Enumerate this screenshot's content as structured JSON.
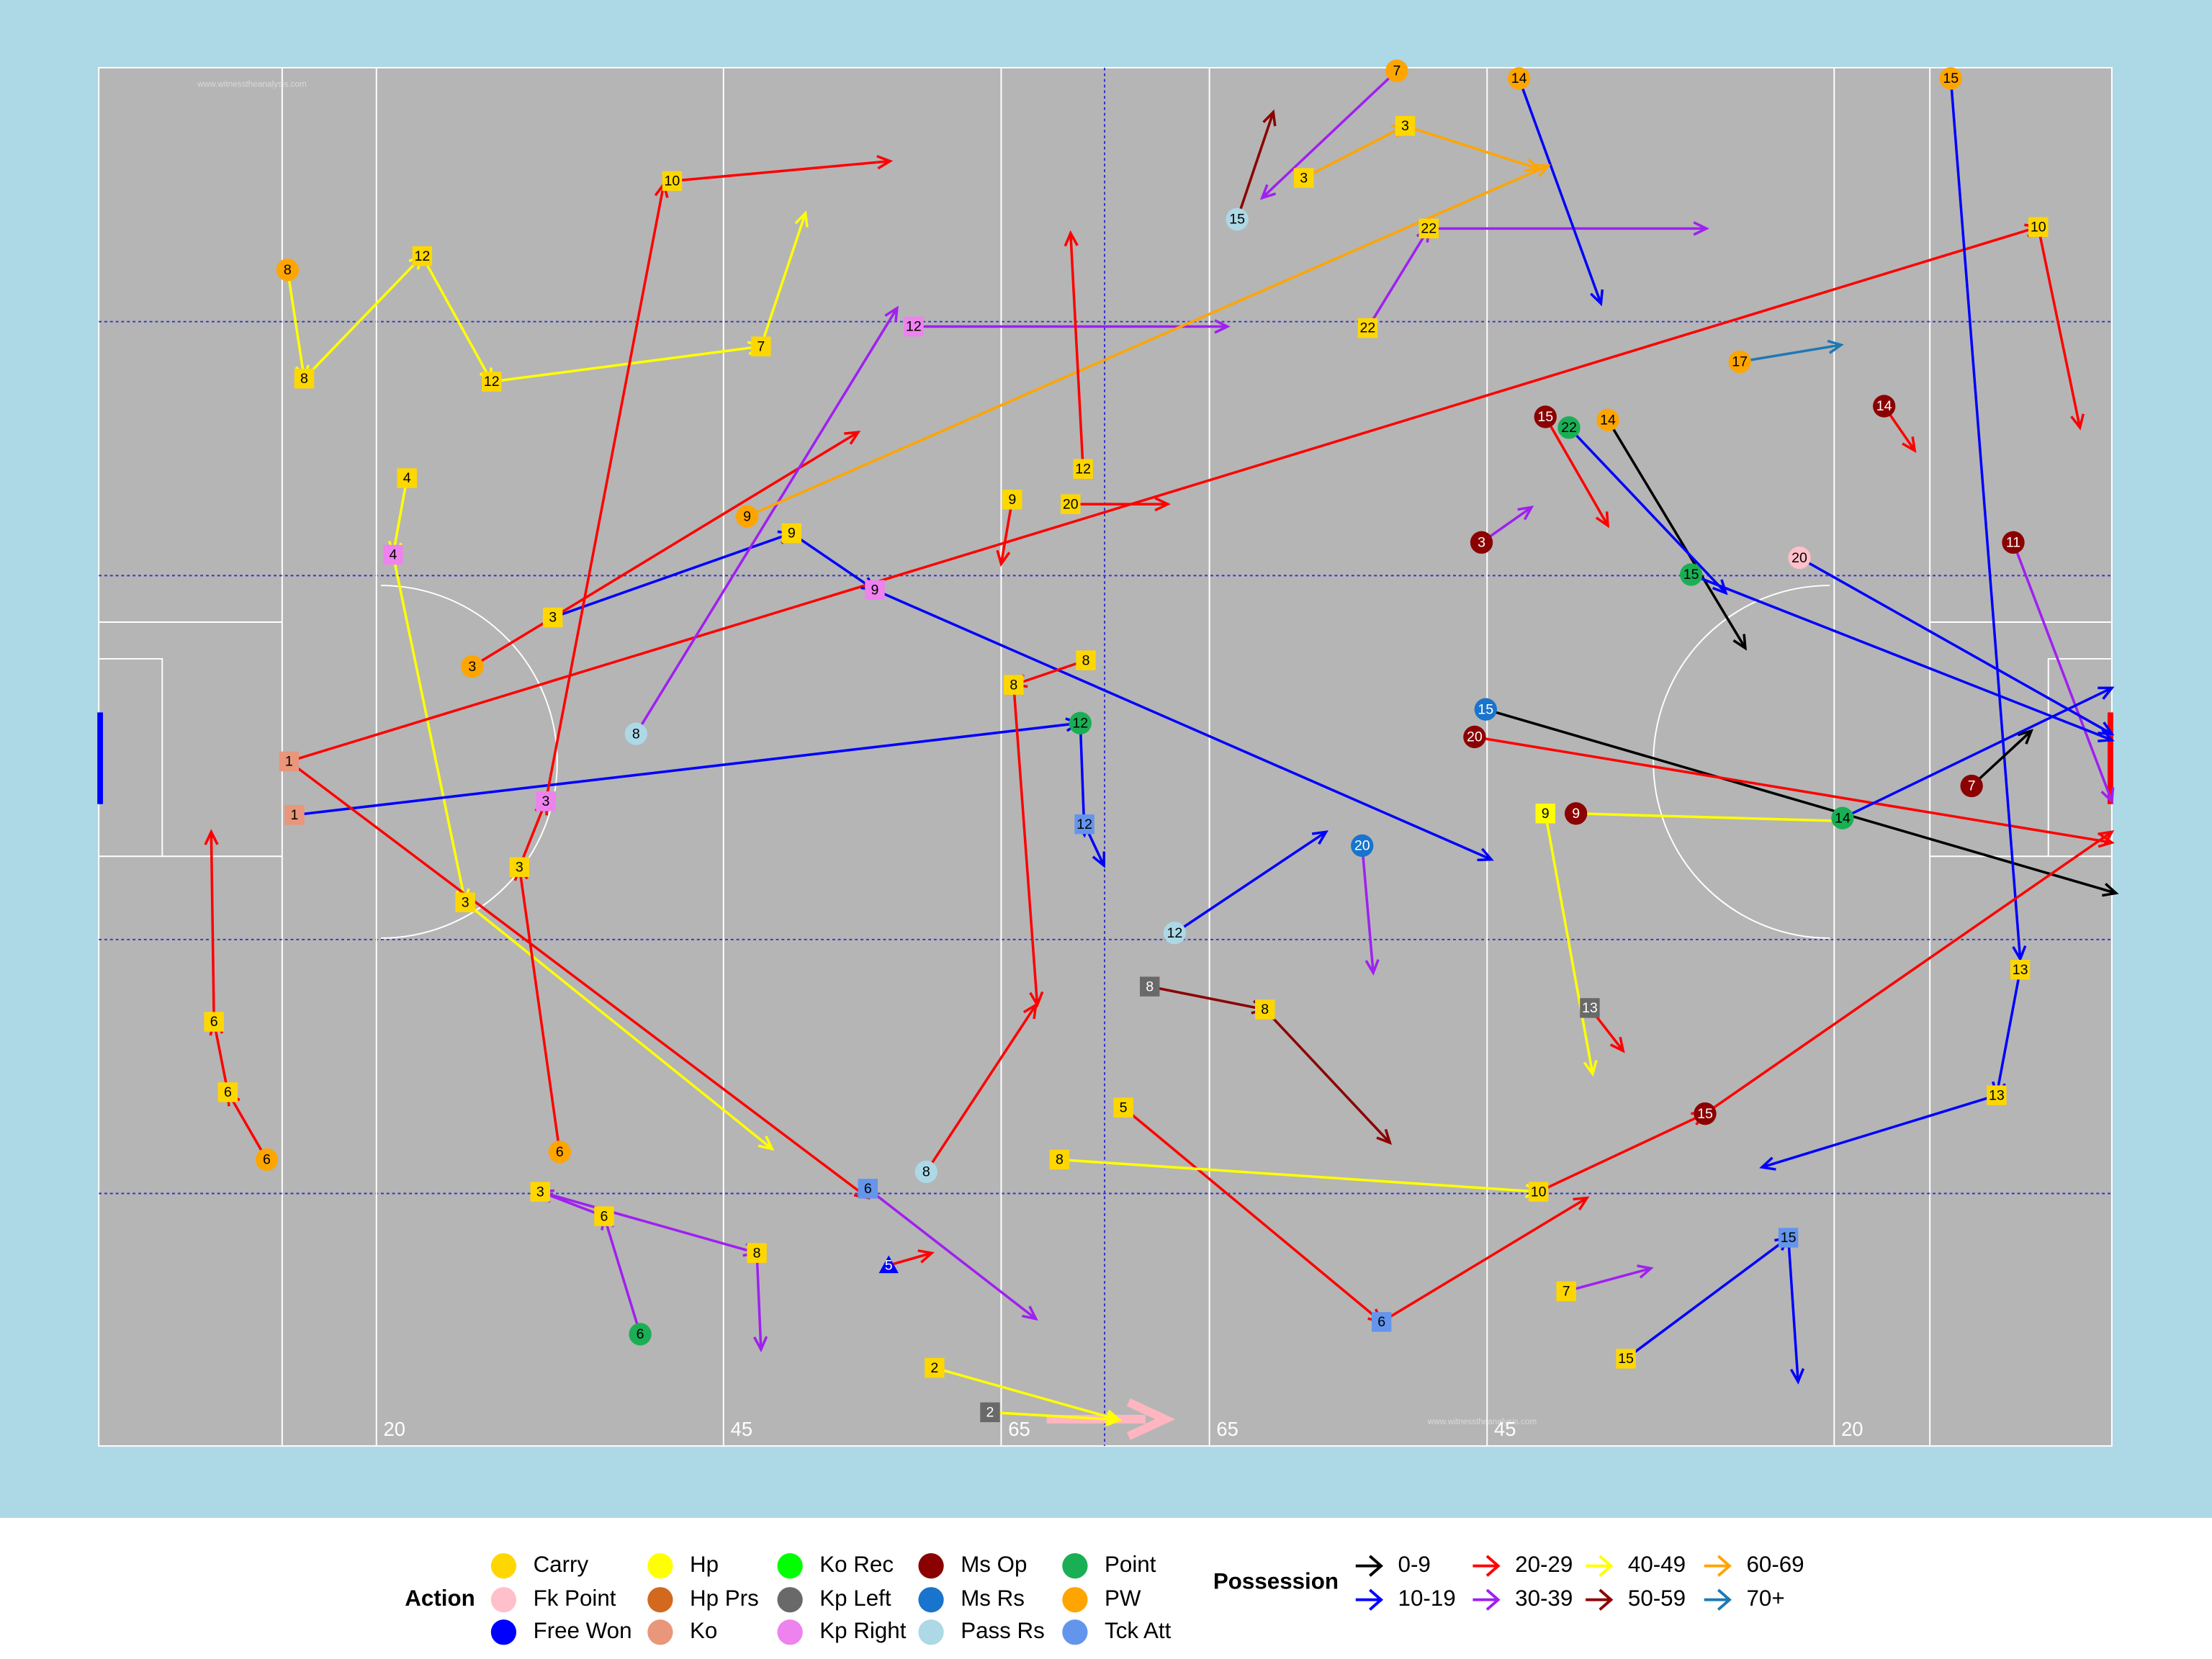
{
  "chart_data": {
    "type": "pitch-map",
    "watermark": "www.witnesstheanalysis.com",
    "xlim": [
      0,
      145
    ],
    "ylim": [
      0,
      90
    ],
    "xticks": [
      20,
      {
        "value": 45,
        "label": "45"
      },
      {
        "value": 65,
        "label": "65"
      },
      {
        "value": 80,
        "label": "65"
      },
      {
        "value": 100,
        "label": "45"
      },
      {
        "value": 125,
        "label": "20"
      }
    ],
    "legend": {
      "action_title": "Action",
      "possession_title": "Possession",
      "actions": [
        {
          "name": "Carry",
          "color": "#FFD700",
          "marker": "square"
        },
        {
          "name": "Fk Point",
          "color": "#FFC0CB",
          "marker": "circle"
        },
        {
          "name": "Free Won",
          "color": "#0000FF",
          "marker": "triangle"
        },
        {
          "name": "Hp",
          "color": "#FFFF00",
          "marker": "square"
        },
        {
          "name": "Hp Prs",
          "color": "#D2691E",
          "marker": "square"
        },
        {
          "name": "Ko",
          "color": "#E9967A",
          "marker": "square"
        },
        {
          "name": "Ko Rec",
          "color": "#00FF00",
          "marker": "circle"
        },
        {
          "name": "Kp Left",
          "color": "#696969",
          "marker": "square"
        },
        {
          "name": "Kp Right",
          "color": "#EE82EE",
          "marker": "square"
        },
        {
          "name": "Ms Op",
          "color": "#8B0000",
          "marker": "circle"
        },
        {
          "name": "Ms Rs",
          "color": "#1874CD",
          "marker": "circle"
        },
        {
          "name": "Pass Rs",
          "color": "#ADD8E6",
          "marker": "circle"
        },
        {
          "name": "Point",
          "color": "#1AAF54",
          "marker": "circle"
        },
        {
          "name": "PW",
          "color": "#FFA500",
          "marker": "circle"
        },
        {
          "name": "Tck Att",
          "color": "#6495ED",
          "marker": "square"
        }
      ],
      "possession": [
        {
          "name": "0-9",
          "color": "#000000"
        },
        {
          "name": "10-19",
          "color": "#0000FF"
        },
        {
          "name": "20-29",
          "color": "#FF0000"
        },
        {
          "name": "30-39",
          "color": "#A020F0"
        },
        {
          "name": "40-49",
          "color": "#FFFF00"
        },
        {
          "name": "50-59",
          "color": "#8B0000"
        },
        {
          "name": "60-69",
          "color": "#FFA500"
        },
        {
          "name": "70+",
          "color": "#1F78B4"
        }
      ]
    },
    "events": [
      {
        "label": "8",
        "action": "PW",
        "possession": "40-49",
        "x": 13.6,
        "y": 13.2,
        "x2": 14.8,
        "y2": 20.3
      },
      {
        "label": "8",
        "action": "Carry",
        "possession": "40-49",
        "x": 14.8,
        "y": 20.3,
        "x2": 23.3,
        "y2": 12.3
      },
      {
        "label": "12",
        "action": "Carry",
        "possession": "40-49",
        "x": 23.3,
        "y": 12.3,
        "x2": 28.3,
        "y2": 20.5
      },
      {
        "label": "12",
        "action": "Carry",
        "possession": "40-49",
        "x": 28.3,
        "y": 20.5,
        "x2": 47.7,
        "y2": 18.2
      },
      {
        "label": "7",
        "action": "Carry",
        "possession": "40-49",
        "x": 47.7,
        "y": 18.2,
        "x2": 50.9,
        "y2": 9.5
      },
      {
        "label": "4",
        "action": "Carry",
        "possession": "40-49",
        "x": 22.2,
        "y": 26.8,
        "x2": 21.2,
        "y2": 31.8
      },
      {
        "label": "4",
        "action": "Kp Right",
        "possession": "40-49",
        "x": 21.2,
        "y": 31.8,
        "x2": 26.4,
        "y2": 54.5
      },
      {
        "label": "3",
        "action": "Carry",
        "possession": "40-49",
        "x": 26.4,
        "y": 54.5,
        "x2": 48.5,
        "y2": 70.6
      },
      {
        "label": "1",
        "action": "Ko",
        "possession": "20-29",
        "x": 13.7,
        "y": 45.3,
        "x2": 139.7,
        "y2": 10.4
      },
      {
        "label": "10",
        "action": "Carry",
        "possession": "20-29",
        "x": 139.7,
        "y": 10.4,
        "x2": 142.7,
        "y2": 23.5
      },
      {
        "label": "6",
        "action": "Carry",
        "possession": "20-29",
        "x": 8.3,
        "y": 62.3,
        "x2": 8.1,
        "y2": 49.9
      },
      {
        "label": "6",
        "action": "Carry",
        "possession": "20-29",
        "x": 9.3,
        "y": 66.9,
        "x2": 8.3,
        "y2": 62.3
      },
      {
        "label": "6",
        "action": "PW",
        "possession": "20-29",
        "x": 12.1,
        "y": 71.3,
        "x2": 9.3,
        "y2": 66.9
      },
      {
        "label": "1",
        "action": "Ko",
        "possession": "10-19",
        "x": 14.1,
        "y": 48.8,
        "x2": 70.6,
        "y2": 42.8
      },
      {
        "label": "12",
        "action": "Point",
        "possession": "10-19",
        "x": 70.7,
        "y": 42.8,
        "x2": 71.0,
        "y2": 50.1
      },
      {
        "label": "12",
        "action": "Tck Att",
        "possession": "10-19",
        "x": 71.0,
        "y": 49.4,
        "x2": 72.4,
        "y2": 52.1
      },
      {
        "label": "3",
        "action": "Carry",
        "possession": "10-19",
        "x": 32.7,
        "y": 35.9,
        "x2": 49.9,
        "y2": 30.4
      },
      {
        "label": "9",
        "action": "Carry",
        "possession": "10-19",
        "x": 49.9,
        "y": 30.4,
        "x2": 55.9,
        "y2": 34.1
      },
      {
        "label": "9",
        "action": "Kp Right",
        "possession": "10-19",
        "x": 55.9,
        "y": 34.1,
        "x2": 100.3,
        "y2": 51.7
      },
      {
        "label": "3",
        "action": "PW",
        "possession": "20-29",
        "x": 26.9,
        "y": 39.1,
        "x2": 54.7,
        "y2": 23.8
      },
      {
        "label": "10",
        "action": "Carry",
        "possession": "20-29",
        "x": 41.3,
        "y": 7.4,
        "x2": 57.0,
        "y2": 6.1
      },
      {
        "label": "3",
        "action": "Kp Right",
        "possession": "20-29",
        "x": 32.2,
        "y": 47.9,
        "x2": 40.7,
        "y2": 7.6
      },
      {
        "label": "3",
        "action": "Carry",
        "possession": "20-29",
        "x": 30.3,
        "y": 52.2,
        "x2": 32.2,
        "y2": 47.9
      },
      {
        "label": "6",
        "action": "PW",
        "possession": "20-29",
        "x": 33.2,
        "y": 70.8,
        "x2": 30.3,
        "y2": 52.2
      },
      {
        "label": "1",
        "action": "Ko",
        "possession": "20-29",
        "x": 13.7,
        "y": 45.3,
        "x2": 55.4,
        "y2": 73.8
      },
      {
        "label": "6",
        "action": "Tck Att",
        "possession": "30-39",
        "x": 55.4,
        "y": 73.2,
        "x2": 67.5,
        "y2": 81.7
      },
      {
        "label": "6",
        "action": "Point",
        "possession": "30-39",
        "x": 39.0,
        "y": 82.7,
        "x2": 36.4,
        "y2": 75.0
      },
      {
        "label": "6",
        "action": "Carry",
        "possession": "30-39",
        "x": 36.4,
        "y": 75.0,
        "x2": 31.8,
        "y2": 73.4
      },
      {
        "label": "3",
        "action": "Carry",
        "possession": "30-39",
        "x": 31.8,
        "y": 73.4,
        "x2": 47.4,
        "y2": 77.4
      },
      {
        "label": "8",
        "action": "Carry",
        "possession": "30-39",
        "x": 47.4,
        "y": 77.4,
        "x2": 47.7,
        "y2": 83.7
      },
      {
        "label": "8",
        "action": "Pass Rs",
        "possession": "30-39",
        "x": 38.7,
        "y": 43.5,
        "x2": 57.5,
        "y2": 15.7
      },
      {
        "label": "12",
        "action": "Kp Right",
        "possession": "30-39",
        "x": 58.7,
        "y": 16.9,
        "x2": 81.3,
        "y2": 16.9
      },
      {
        "label": "22",
        "action": "Carry",
        "possession": "30-39",
        "x": 91.4,
        "y": 17.0,
        "x2": 95.8,
        "y2": 10.5
      },
      {
        "label": "22",
        "action": "Carry",
        "possession": "30-39",
        "x": 95.8,
        "y": 10.5,
        "x2": 115.8,
        "y2": 10.5
      },
      {
        "label": "15",
        "action": "Ms Rs",
        "possession": "0-9",
        "x": 99.9,
        "y": 41.9,
        "x2": 145.3,
        "y2": 53.9
      },
      {
        "label": "20",
        "action": "Ms Op",
        "possession": "20-29",
        "x": 99.1,
        "y": 43.7,
        "x2": 145.0,
        "y2": 50.6
      },
      {
        "label": "14",
        "action": "PW",
        "possession": "0-9",
        "x": 108.7,
        "y": 23.0,
        "x2": 118.6,
        "y2": 37.9
      },
      {
        "label": "14",
        "action": "PW",
        "possession": "10-19",
        "x": 102.3,
        "y": 0.7,
        "x2": 108.2,
        "y2": 15.4
      },
      {
        "label": "15",
        "action": "PW",
        "possession": "10-19",
        "x": 133.4,
        "y": 0.7,
        "x2": 138.4,
        "y2": 58.2
      },
      {
        "label": "13",
        "action": "Carry",
        "possession": "10-19",
        "x": 138.4,
        "y": 58.9,
        "x2": 136.7,
        "y2": 67.1
      },
      {
        "label": "13",
        "action": "Carry",
        "possession": "10-19",
        "x": 136.7,
        "y": 67.1,
        "x2": 119.8,
        "y2": 71.8
      },
      {
        "label": "17",
        "action": "PW",
        "possession": "70+",
        "x": 118.2,
        "y": 19.2,
        "x2": 125.5,
        "y2": 18.1
      },
      {
        "label": "14",
        "action": "Ms Op",
        "possession": "20-29",
        "x": 128.6,
        "y": 22.1,
        "x2": 130.8,
        "y2": 25.0
      },
      {
        "label": "11",
        "action": "Ms Op",
        "possession": "30-39",
        "x": 137.9,
        "y": 31.0,
        "x2": 145.0,
        "y2": 47.9
      },
      {
        "label": "7",
        "action": "Ms Op",
        "possession": "0-9",
        "x": 134.9,
        "y": 46.9,
        "x2": 139.2,
        "y2": 43.3
      },
      {
        "label": "9",
        "action": "Ms Op",
        "possession": "40-49",
        "x": 106.4,
        "y": 48.7,
        "x2": 126.0,
        "y2": 49.2
      },
      {
        "label": "14",
        "action": "Point",
        "possession": "10-19",
        "x": 125.6,
        "y": 49.0,
        "x2": 145.0,
        "y2": 40.5
      },
      {
        "label": "15",
        "action": "Ms Op",
        "possession": "20-29",
        "x": 115.7,
        "y": 68.3,
        "x2": 145.0,
        "y2": 49.9
      },
      {
        "label": "5",
        "action": "Carry",
        "possession": "20-29",
        "x": 73.8,
        "y": 67.9,
        "x2": 92.4,
        "y2": 81.9
      },
      {
        "label": "6",
        "action": "Tck Att",
        "possession": "20-29",
        "x": 92.4,
        "y": 81.9,
        "x2": 107.2,
        "y2": 73.8
      },
      {
        "label": "3",
        "action": "Ms Op",
        "possession": "30-39",
        "x": 99.6,
        "y": 31.0,
        "x2": 103.2,
        "y2": 28.7
      },
      {
        "label": "20",
        "action": "Fk Point",
        "possession": "10-19",
        "x": 122.5,
        "y": 32.0,
        "x2": 145.0,
        "y2": 43.5
      },
      {
        "label": "7",
        "action": "PW",
        "possession": "30-39",
        "x": 93.5,
        "y": 0.2,
        "x2": 83.8,
        "y2": 8.5
      },
      {
        "label": "3",
        "action": "Carry",
        "possession": "60-69",
        "x": 94.1,
        "y": 3.8,
        "x2": 103.7,
        "y2": 6.6
      },
      {
        "label": "3",
        "action": "Carry",
        "possession": "60-69",
        "x": 86.8,
        "y": 7.2,
        "x2": 94.1,
        "y2": 3.8
      },
      {
        "label": "9",
        "action": "PW",
        "possession": "60-69",
        "x": 46.7,
        "y": 29.3,
        "x2": 104.4,
        "y2": 6.4
      },
      {
        "label": "9",
        "action": "Carry",
        "possession": "20-29",
        "x": 65.8,
        "y": 28.2,
        "x2": 65.0,
        "y2": 32.4
      },
      {
        "label": "20",
        "action": "Carry",
        "possession": "20-29",
        "x": 70.0,
        "y": 28.5,
        "x2": 77.0,
        "y2": 28.5
      },
      {
        "label": "12",
        "action": "Carry",
        "possession": "20-29",
        "x": 70.9,
        "y": 26.2,
        "x2": 70.0,
        "y2": 10.8
      },
      {
        "label": "8",
        "action": "Carry",
        "possession": "20-29",
        "x": 71.1,
        "y": 38.7,
        "x2": 65.9,
        "y2": 40.3
      },
      {
        "label": "8",
        "action": "Carry",
        "possession": "20-29",
        "x": 65.9,
        "y": 40.3,
        "x2": 67.6,
        "y2": 61.2
      },
      {
        "label": "8",
        "action": "Kp Left",
        "possession": "50-59",
        "x": 75.7,
        "y": 60.0,
        "x2": 84.0,
        "y2": 61.5
      },
      {
        "label": "8",
        "action": "Carry",
        "possession": "50-59",
        "x": 84.0,
        "y": 61.5,
        "x2": 93.0,
        "y2": 70.2
      },
      {
        "label": "2",
        "action": "Kp Left",
        "possession": "40-49",
        "x": 64.2,
        "y": 87.8,
        "x2": 73.5,
        "y2": 88.3
      },
      {
        "label": "2",
        "action": "Carry",
        "possession": "40-49",
        "x": 60.2,
        "y": 84.9,
        "x2": 73.5,
        "y2": 88.3
      },
      {
        "label": "8",
        "action": "Pass Rs",
        "possession": "20-29",
        "x": 59.6,
        "y": 72.1,
        "x2": 67.5,
        "y2": 61.2
      },
      {
        "label": "8",
        "action": "Carry",
        "possession": "40-49",
        "x": 69.2,
        "y": 71.3,
        "x2": 103.7,
        "y2": 73.4
      },
      {
        "label": "10",
        "action": "Carry",
        "possession": "20-29",
        "x": 103.7,
        "y": 73.4,
        "x2": 115.7,
        "y2": 68.3
      },
      {
        "label": "7",
        "action": "Carry",
        "possession": "30-39",
        "x": 105.7,
        "y": 79.9,
        "x2": 111.8,
        "y2": 78.4
      },
      {
        "label": "15",
        "action": "Tck Att",
        "possession": "10-19",
        "x": 121.7,
        "y": 76.4,
        "x2": 122.4,
        "y2": 85.8
      },
      {
        "label": "15",
        "action": "Carry",
        "possession": "10-19",
        "x": 110.0,
        "y": 84.3,
        "x2": 121.7,
        "y2": 76.4
      },
      {
        "label": "15",
        "action": "Point",
        "possession": "10-19",
        "x": 114.7,
        "y": 33.1,
        "x2": 145.0,
        "y2": 43.9
      },
      {
        "label": "22",
        "action": "Point",
        "possession": "10-19",
        "x": 105.9,
        "y": 23.5,
        "x2": 117.2,
        "y2": 34.3
      },
      {
        "label": "15",
        "action": "Ms Op",
        "possession": "20-29",
        "x": 104.2,
        "y": 22.8,
        "x2": 108.7,
        "y2": 29.9
      },
      {
        "label": "5",
        "action": "Free Won",
        "possession": "20-29",
        "x": 56.9,
        "y": 78.2,
        "x2": 60.0,
        "y2": 77.4
      },
      {
        "label": "15",
        "action": "Pass Rs",
        "possession": "50-59",
        "x": 82.0,
        "y": 9.9,
        "x2": 84.6,
        "y2": 2.9
      },
      {
        "label": "20",
        "action": "Ms Rs",
        "possession": "30-39",
        "x": 91.0,
        "y": 50.8,
        "x2": 91.8,
        "y2": 59.1
      },
      {
        "label": "9",
        "action": "Hp",
        "possession": "40-49",
        "x": 104.2,
        "y": 48.7,
        "x2": 107.6,
        "y2": 65.7
      },
      {
        "label": "12",
        "action": "Pass Rs",
        "possession": "10-19",
        "x": 77.5,
        "y": 56.5,
        "x2": 88.4,
        "y2": 49.9
      },
      {
        "label": "13",
        "action": "Kp Left",
        "possession": "20-29",
        "x": 107.4,
        "y": 61.4,
        "x2": 109.8,
        "y2": 64.2
      }
    ]
  }
}
